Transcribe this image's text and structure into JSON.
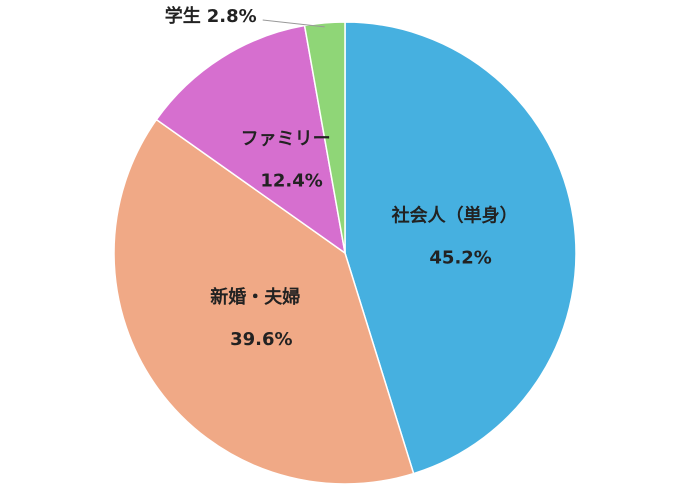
{
  "chart_data": {
    "type": "pie",
    "categories": [
      "社会人（単身）",
      "新婚・夫婦",
      "ファミリー",
      "学生"
    ],
    "values": [
      45.2,
      39.6,
      12.4,
      2.8
    ],
    "value_labels": [
      "45.2%",
      "39.6%",
      "12.4%",
      "2.8%"
    ],
    "colors": [
      "#46b0e0",
      "#f0a986",
      "#d66fcf",
      "#8fd677"
    ]
  }
}
